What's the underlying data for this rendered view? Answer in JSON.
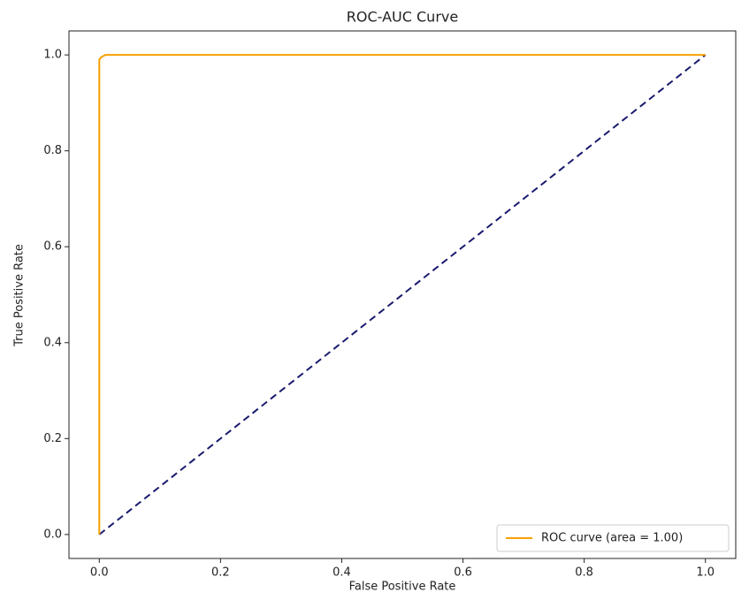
{
  "chart_data": {
    "type": "line",
    "title": "ROC-AUC Curve",
    "x_label": "False Positive Rate",
    "y_label": "True Positive Rate",
    "series": [
      {
        "name": "ROC curve (area = 1.00)",
        "color": "#f5a000",
        "x": [
          0,
          0,
          0.003,
          0.01,
          1
        ],
        "values": [
          0,
          0.99,
          0.995,
          1,
          1
        ]
      }
    ],
    "reference_line": {
      "color": "#1a1a6e",
      "x": [
        0,
        1
      ],
      "values": [
        0,
        1
      ],
      "dashed": true
    },
    "xlim": [
      -0.05,
      1.05
    ],
    "ylim": [
      -0.05,
      1.05
    ],
    "xticks": [
      {
        "value": 0,
        "label": "0.0"
      },
      0.2,
      0.4,
      0.6,
      0.8,
      {
        "value": 1,
        "label": "1.0"
      }
    ],
    "yticks": [
      {
        "value": 0,
        "label": "0.0"
      },
      0.2,
      0.4,
      0.6,
      0.8,
      {
        "value": 1,
        "label": "1.0"
      }
    ],
    "grid": false,
    "legend": "lower right"
  }
}
